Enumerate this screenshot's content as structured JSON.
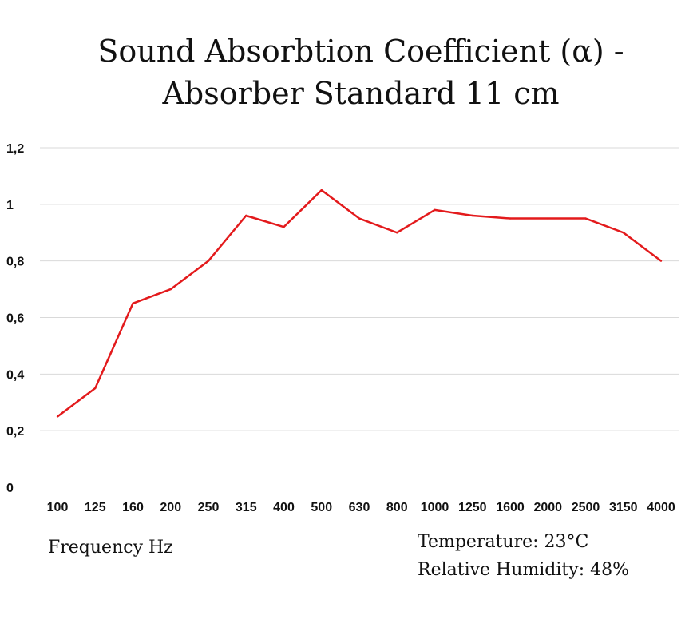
{
  "chart_data": {
    "type": "line",
    "title": [
      "Sound Absorbtion Coefficient (α) -",
      "Absorber Standard 11 cm"
    ],
    "xlabel": "Frequency Hz",
    "ylabel": "",
    "categories": [
      "100",
      "125",
      "160",
      "200",
      "250",
      "315",
      "400",
      "500",
      "630",
      "800",
      "1000",
      "1250",
      "1600",
      "2000",
      "2500",
      "3150",
      "4000"
    ],
    "series": [
      {
        "values": [
          0.25,
          0.35,
          0.65,
          0.7,
          0.8,
          0.96,
          0.92,
          1.05,
          0.95,
          0.9,
          0.98,
          0.96,
          0.95,
          0.95,
          0.95,
          0.9,
          0.8
        ],
        "color": "#e31a1c"
      }
    ],
    "ylim": [
      0,
      1.2
    ],
    "yticks": [
      "0",
      "0,2",
      "0,4",
      "0,6",
      "0,8",
      "1",
      "1,2"
    ],
    "grid": true,
    "annotations": [
      "Temperature: 23°C",
      "Relative Humidity: 48%"
    ]
  }
}
